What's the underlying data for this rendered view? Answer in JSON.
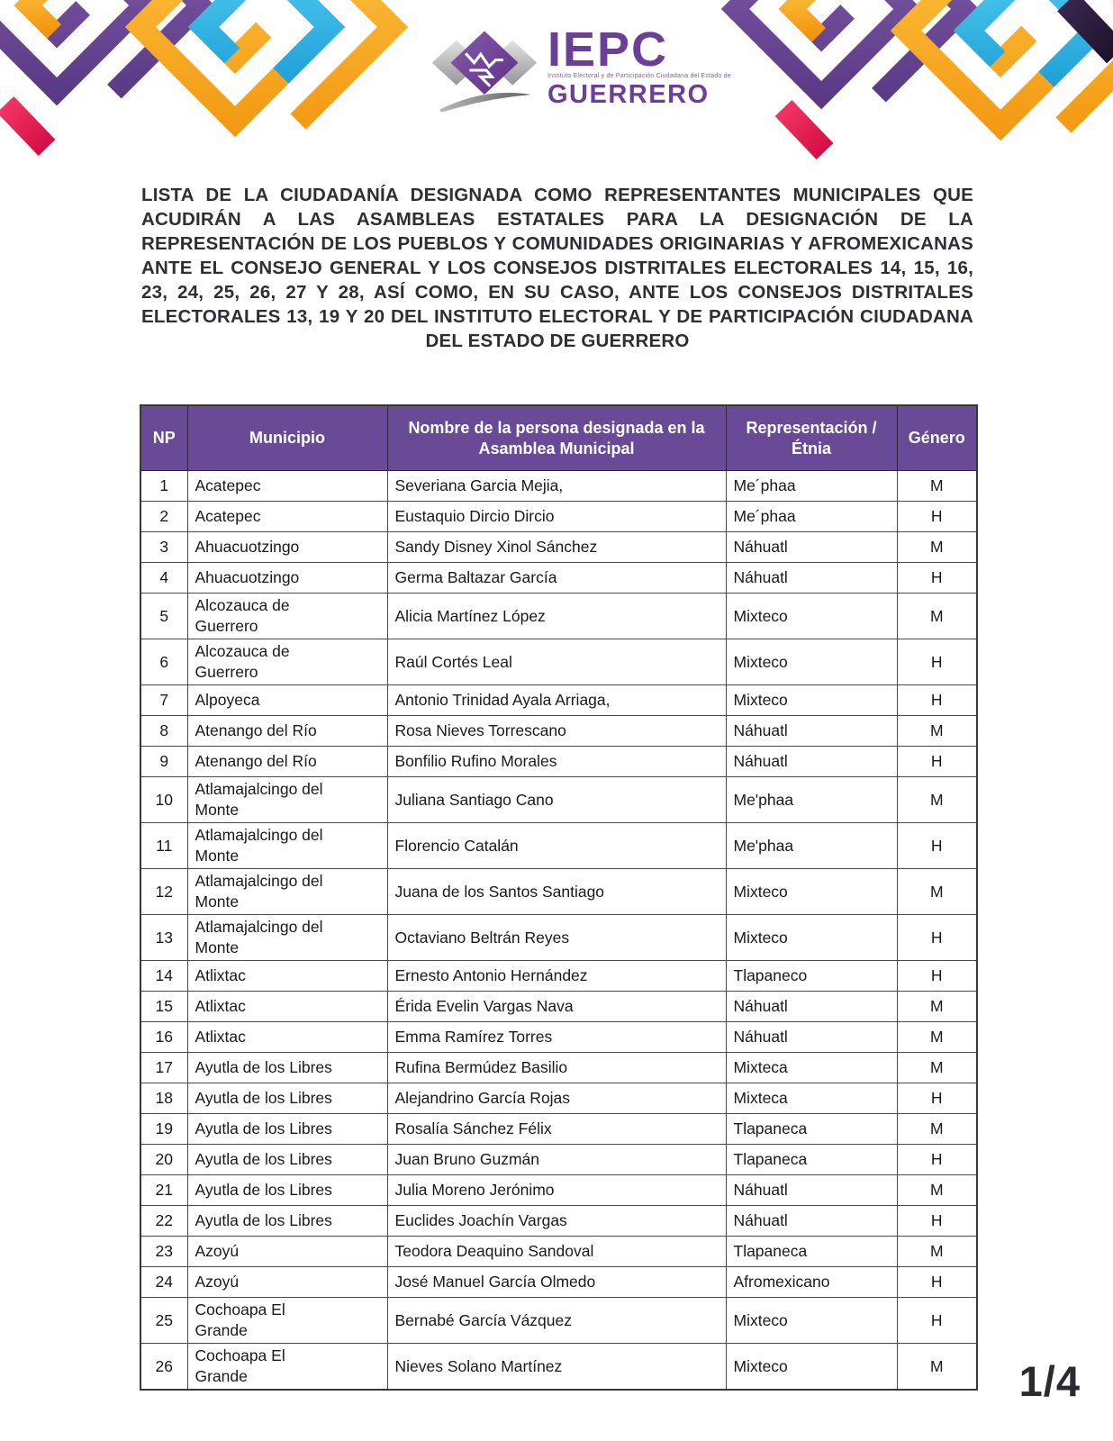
{
  "header": {
    "logo": {
      "acronym": "IEPC",
      "tagline": "Instituto Electoral y de Participación Ciudadana del Estado de",
      "state": "GUERRERO"
    }
  },
  "title": "LISTA DE LA CIUDADANÍA DESIGNADA COMO REPRESENTANTES MUNICIPALES QUE ACUDIRÁN A LAS ASAMBLEAS ESTATALES PARA LA DESIGNACIÓN DE LA REPRESENTACIÓN DE LOS PUEBLOS Y COMUNIDADES ORIGINARIAS Y AFROMEXICANAS ANTE EL CONSEJO GENERAL Y LOS CONSEJOS DISTRITALES ELECTORALES 14, 15, 16, 23, 24, 25, 26, 27 Y 28, ASÍ COMO, EN SU CASO, ANTE LOS CONSEJOS DISTRITALES ELECTORALES 13, 19 Y 20 DEL INSTITUTO ELECTORAL Y DE PARTICIPACIÓN CIUDADANA DEL ESTADO DE GUERRERO",
  "table": {
    "columns": [
      "NP",
      "Municipio",
      "Nombre de la persona designada en la Asamblea Municipal",
      "Representación / Étnia",
      "Género"
    ],
    "rows": [
      {
        "np": "1",
        "municipio": "Acatepec",
        "nombre": "Severiana Garcia Mejia,",
        "etnia": "Me´phaa",
        "genero": "M"
      },
      {
        "np": "2",
        "municipio": "Acatepec",
        "nombre": "Eustaquio Dircio Dircio",
        "etnia": "Me´phaa",
        "genero": "H"
      },
      {
        "np": "3",
        "municipio": "Ahuacuotzingo",
        "nombre": "Sandy Disney Xinol Sánchez",
        "etnia": "Náhuatl",
        "genero": "M"
      },
      {
        "np": "4",
        "municipio": "Ahuacuotzingo",
        "nombre": "Germa Baltazar García",
        "etnia": "Náhuatl",
        "genero": "H"
      },
      {
        "np": "5",
        "municipio": "Alcozauca de\nGuerrero",
        "nombre": "Alicia Martínez López",
        "etnia": "Mixteco",
        "genero": "M"
      },
      {
        "np": "6",
        "municipio": "Alcozauca de\nGuerrero",
        "nombre": "Raúl Cortés Leal",
        "etnia": "Mixteco",
        "genero": "H"
      },
      {
        "np": "7",
        "municipio": "Alpoyeca",
        "nombre": "Antonio Trinidad Ayala Arriaga,",
        "etnia": "Mixteco",
        "genero": "H"
      },
      {
        "np": "8",
        "municipio": "Atenango del Río",
        "nombre": "Rosa Nieves Torrescano",
        "etnia": "Náhuatl",
        "genero": "M"
      },
      {
        "np": "9",
        "municipio": "Atenango del Río",
        "nombre": "Bonfilio Rufino Morales",
        "etnia": "Náhuatl",
        "genero": "H"
      },
      {
        "np": "10",
        "municipio": "Atlamajalcingo del\nMonte",
        "nombre": "Juliana Santiago Cano",
        "etnia": "Me'phaa",
        "genero": "M"
      },
      {
        "np": "11",
        "municipio": "Atlamajalcingo del\nMonte",
        "nombre": "Florencio Catalán",
        "etnia": "Me'phaa",
        "genero": "H"
      },
      {
        "np": "12",
        "municipio": "Atlamajalcingo del\nMonte",
        "nombre": "Juana de los Santos Santiago",
        "etnia": "Mixteco",
        "genero": "M"
      },
      {
        "np": "13",
        "municipio": "Atlamajalcingo del\nMonte",
        "nombre": "Octaviano Beltrán Reyes",
        "etnia": "Mixteco",
        "genero": "H"
      },
      {
        "np": "14",
        "municipio": "Atlixtac",
        "nombre": "Ernesto Antonio Hernández",
        "etnia": "Tlapaneco",
        "genero": "H"
      },
      {
        "np": "15",
        "municipio": "Atlixtac",
        "nombre": "Érida Evelin Vargas Nava",
        "etnia": "Náhuatl",
        "genero": "M"
      },
      {
        "np": "16",
        "municipio": "Atlixtac",
        "nombre": "Emma Ramírez Torres",
        "etnia": "Náhuatl",
        "genero": "M"
      },
      {
        "np": "17",
        "municipio": "Ayutla de los Libres",
        "nombre": "Rufina Bermúdez Basilio",
        "etnia": "Mixteca",
        "genero": "M"
      },
      {
        "np": "18",
        "municipio": "Ayutla de los Libres",
        "nombre": "Alejandrino García Rojas",
        "etnia": "Mixteca",
        "genero": "H"
      },
      {
        "np": "19",
        "municipio": "Ayutla de los Libres",
        "nombre": "Rosalía Sánchez Félix",
        "etnia": "Tlapaneca",
        "genero": "M"
      },
      {
        "np": "20",
        "municipio": "Ayutla de los Libres",
        "nombre": "Juan Bruno Guzmán",
        "etnia": "Tlapaneca",
        "genero": "H"
      },
      {
        "np": "21",
        "municipio": "Ayutla de los Libres",
        "nombre": "Julia Moreno Jerónimo",
        "etnia": "Náhuatl",
        "genero": "M"
      },
      {
        "np": "22",
        "municipio": "Ayutla de los Libres",
        "nombre": "Euclides Joachín Vargas",
        "etnia": "Náhuatl",
        "genero": "H"
      },
      {
        "np": "23",
        "municipio": "Azoyú",
        "nombre": "Teodora Deaquino Sandoval",
        "etnia": "Tlapaneca",
        "genero": "M"
      },
      {
        "np": "24",
        "municipio": "Azoyú",
        "nombre": "José Manuel García Olmedo",
        "etnia": "Afromexicano",
        "genero": "H"
      },
      {
        "np": "25",
        "municipio": "Cochoapa El\nGrande",
        "nombre": "Bernabé García Vázquez",
        "etnia": "Mixteco",
        "genero": "H"
      },
      {
        "np": "26",
        "municipio": "Cochoapa El\nGrande",
        "nombre": "Nieves Solano Martínez",
        "etnia": "Mixteco",
        "genero": "M"
      }
    ]
  },
  "page_number": "1/4",
  "colors": {
    "table_header_purple": "#684a97",
    "logo_purple": "#6b3f98",
    "title_ink": "#2f2e33",
    "pattern_purple": "#6b4b9c",
    "pattern_dark": "#241832",
    "pattern_orange": "#f5a01b",
    "pattern_cyan": "#29abe2",
    "pattern_red": "#e91e50"
  }
}
